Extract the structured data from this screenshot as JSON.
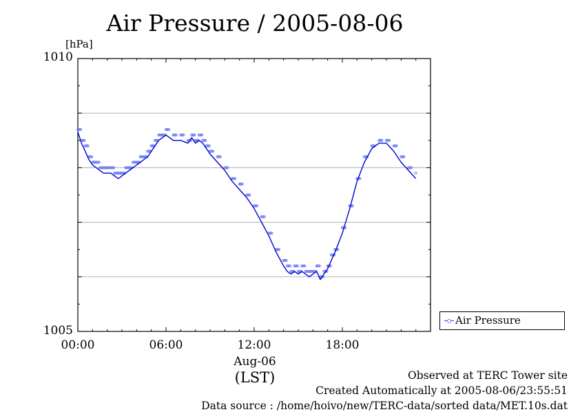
{
  "chart_data": {
    "type": "line",
    "title": "Air Pressure / 2005-08-06",
    "ylabel": "[hPa]",
    "ylim": [
      1005,
      1010
    ],
    "yticks": [
      1005,
      1006,
      1007,
      1008,
      1009,
      1010
    ],
    "ytick_labels": [
      "1005",
      "",
      "",
      "",
      "",
      "1010"
    ],
    "xlim": [
      0,
      23
    ],
    "xticks": [
      0,
      6,
      12,
      18
    ],
    "xtick_labels": [
      "00:00",
      "06:00",
      "12:00",
      "18:00"
    ],
    "xlabel_date": "Aug-06",
    "xlabel_tz": "(LST)",
    "grid": "horizontal",
    "legend_position": "bottom-right outside",
    "series": [
      {
        "name": "Air Pressure",
        "color": "#0000cc",
        "marker_color": "#6e7ef2",
        "x": [
          0,
          0.25,
          0.5,
          0.75,
          1,
          1.25,
          1.5,
          1.75,
          2,
          2.25,
          2.5,
          2.75,
          3,
          3.25,
          3.5,
          3.75,
          4,
          4.25,
          4.5,
          4.75,
          5,
          5.25,
          5.5,
          5.75,
          6,
          6.5,
          7,
          7.5,
          7.75,
          8,
          8.25,
          8.5,
          8.75,
          9,
          9.5,
          10,
          10.5,
          11,
          11.5,
          12,
          12.5,
          13,
          13.5,
          14,
          14.25,
          14.5,
          14.75,
          15,
          15.25,
          15.5,
          15.75,
          16,
          16.25,
          16.5,
          16.75,
          17,
          17.25,
          17.5,
          18,
          18.5,
          19,
          19.5,
          20,
          20.5,
          21,
          21.5,
          22,
          22.5,
          23
        ],
        "y": [
          1008.65,
          1008.45,
          1008.3,
          1008.15,
          1008.05,
          1008.0,
          1007.95,
          1007.9,
          1007.9,
          1007.9,
          1007.85,
          1007.8,
          1007.85,
          1007.9,
          1007.95,
          1008.0,
          1008.05,
          1008.1,
          1008.15,
          1008.2,
          1008.3,
          1008.4,
          1008.5,
          1008.55,
          1008.6,
          1008.5,
          1008.5,
          1008.45,
          1008.55,
          1008.45,
          1008.5,
          1008.45,
          1008.35,
          1008.25,
          1008.1,
          1007.95,
          1007.75,
          1007.6,
          1007.45,
          1007.25,
          1007.0,
          1006.75,
          1006.45,
          1006.2,
          1006.1,
          1006.05,
          1006.1,
          1006.05,
          1006.1,
          1006.05,
          1006.0,
          1006.05,
          1006.1,
          1005.95,
          1006.05,
          1006.15,
          1006.3,
          1006.45,
          1006.8,
          1007.25,
          1007.75,
          1008.1,
          1008.35,
          1008.45,
          1008.45,
          1008.3,
          1008.1,
          1007.95,
          1007.8
        ]
      }
    ]
  },
  "legend": {
    "label": "Air Pressure"
  },
  "footer": {
    "line1": "Observed at TERC Tower site",
    "line2": "Created Automatically at 2005-08-06/23:55:51",
    "line3": "Data source : /home/hoivo/new/TERC-data/sorted  data/MET.10s.dat"
  }
}
